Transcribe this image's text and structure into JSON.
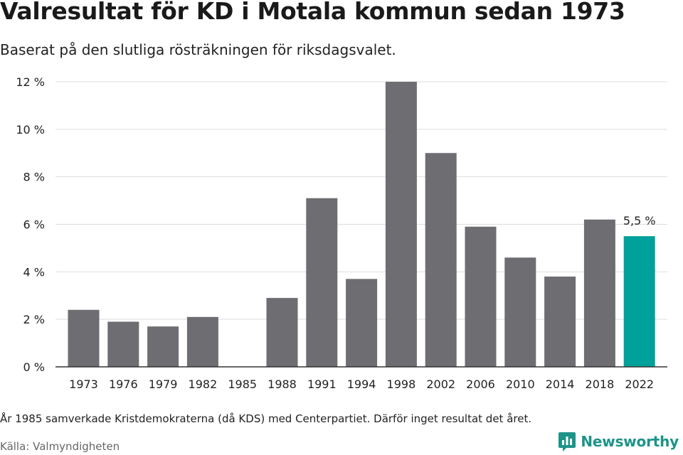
{
  "title": "Valresultat för KD i Motala kommun sedan 1973",
  "subtitle": "Baserat på den slutliga rösträkningen för riksdagsvalet.",
  "footnote": "År 1985 samverkade Kristdemokraterna (då KDS) med Centerpartiet. Därför inget resultat det året.",
  "source": "Källa: Valmyndigheten",
  "brand": {
    "name": "Newsworthy",
    "icon": "newsworthy-logo-icon",
    "color": "#1d9488"
  },
  "colors": {
    "bar": "#6e6d72",
    "highlight": "#00a19a",
    "grid": "#dddddd",
    "axis": "#333333"
  },
  "chart_data": {
    "type": "bar",
    "categories": [
      "1973",
      "1976",
      "1979",
      "1982",
      "1985",
      "1988",
      "1991",
      "1994",
      "1998",
      "2002",
      "2006",
      "2010",
      "2014",
      "2018",
      "2022"
    ],
    "values": [
      2.4,
      1.9,
      1.7,
      2.1,
      null,
      2.9,
      7.1,
      3.7,
      12.0,
      9.0,
      5.9,
      4.6,
      3.8,
      6.2,
      5.5
    ],
    "highlight_category": "2022",
    "data_labels": {
      "2022": "5,5 %"
    },
    "yticks": [
      "0 %",
      "2 %",
      "4 %",
      "6 %",
      "8 %",
      "10 %",
      "12 %"
    ],
    "ytick_values": [
      0,
      2,
      4,
      6,
      8,
      10,
      12
    ],
    "ylim": [
      0,
      12
    ],
    "unit": "%",
    "grid": true,
    "legend": false
  }
}
